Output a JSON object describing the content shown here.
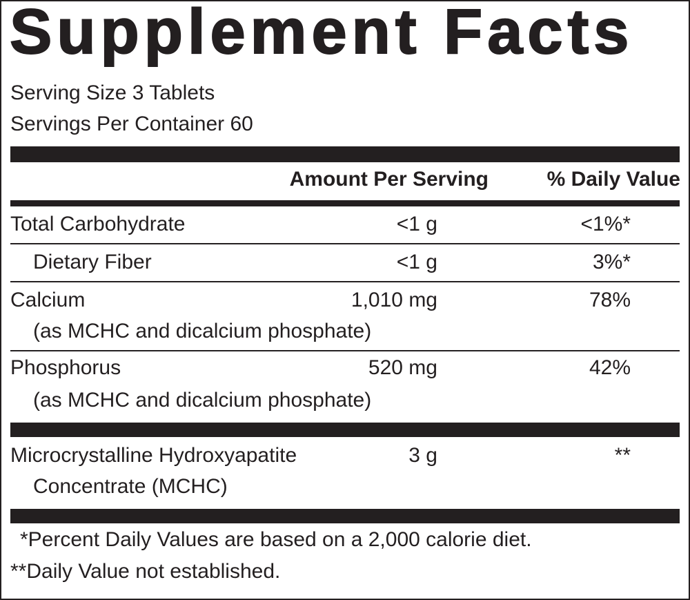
{
  "title": "Supplement Facts",
  "serving_size": "Serving Size 3 Tablets",
  "servings_per_container": "Servings Per Container 60",
  "header": {
    "amount": "Amount Per Serving",
    "daily_value": "% Daily Value"
  },
  "rows": [
    {
      "name": "Total Carbohydrate",
      "amount": "<1 g",
      "dv": "<1%*"
    },
    {
      "name": "Dietary Fiber",
      "amount": "<1 g",
      "dv": "3%*"
    },
    {
      "name": "Calcium",
      "sub": "(as MCHC and dicalcium phosphate)",
      "amount": "1,010 mg",
      "dv": "78%"
    },
    {
      "name": "Phosphorus",
      "sub": "(as MCHC and dicalcium phosphate)",
      "amount": "520 mg",
      "dv": "42%"
    },
    {
      "name": "Microcrystalline Hydroxyapatite",
      "sub": "Concentrate (MCHC)",
      "amount": "3 g",
      "dv": "**"
    }
  ],
  "footnotes": [
    "*Percent Daily Values are based on a 2,000 calorie diet.",
    "**Daily Value not established."
  ]
}
